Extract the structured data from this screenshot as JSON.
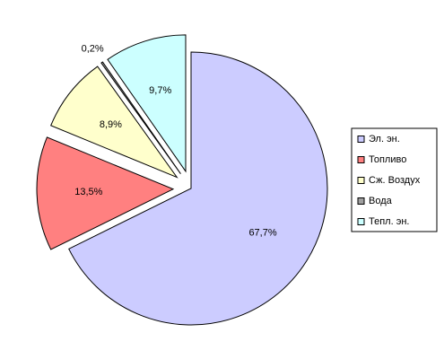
{
  "chart_data": {
    "type": "pie",
    "categories": [
      "Эл. эн.",
      "Топливо",
      "Сж. Воздух",
      "Вода",
      "Тепл. эн."
    ],
    "values": [
      67.7,
      13.5,
      8.9,
      0.2,
      9.7
    ],
    "value_labels": [
      "67,7%",
      "13,5%",
      "8,9%",
      "0,2%",
      "9,7%"
    ],
    "colors": [
      "#ccccff",
      "#ff8080",
      "#ffffcc",
      "#a0a0a0",
      "#ccffff"
    ],
    "legend": "right"
  }
}
